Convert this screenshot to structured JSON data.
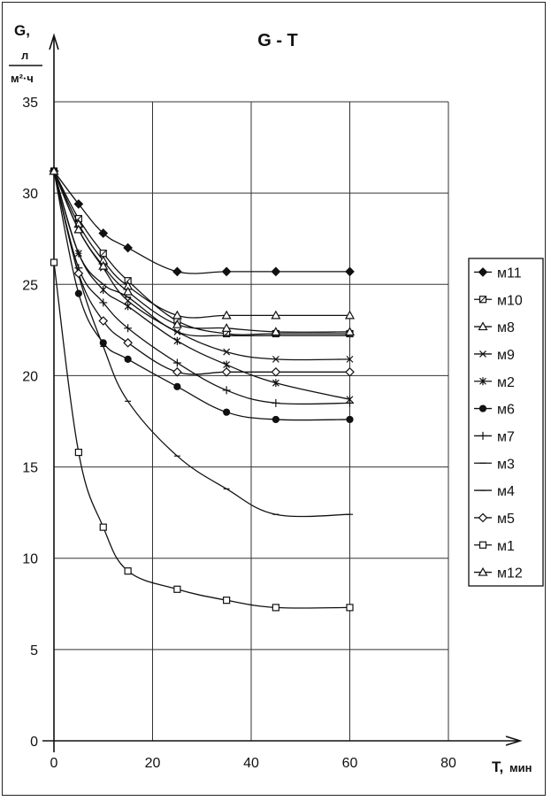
{
  "chart_data": {
    "type": "line",
    "title": "G - T",
    "ylabel": {
      "name": "G,",
      "unit_numerator": "л",
      "unit_denominator": "м²·ч"
    },
    "xlabel": {
      "name": "T,",
      "unit": "мин"
    },
    "xlim": [
      0,
      80
    ],
    "ylim": [
      0,
      35
    ],
    "xticks": [
      0,
      20,
      40,
      60,
      80
    ],
    "yticks": [
      0,
      5,
      10,
      15,
      20,
      25,
      30,
      35
    ],
    "grid": true,
    "legend_position": "right",
    "series": [
      {
        "name": "м11",
        "marker": "diamond-filled",
        "x": [
          0,
          5,
          10,
          15,
          25,
          35,
          45,
          60
        ],
        "y": [
          31.2,
          29.4,
          27.8,
          27.0,
          25.7,
          25.7,
          25.7,
          25.7
        ]
      },
      {
        "name": "м10",
        "marker": "square-hatched",
        "x": [
          0,
          5,
          10,
          15,
          25,
          35,
          45,
          60
        ],
        "y": [
          31.2,
          28.6,
          26.7,
          25.2,
          23.0,
          22.3,
          22.3,
          22.3
        ]
      },
      {
        "name": "м8",
        "marker": "triangle-open",
        "x": [
          0,
          5,
          10,
          15,
          25,
          35,
          45,
          60
        ],
        "y": [
          31.2,
          28.3,
          26.3,
          24.9,
          23.3,
          23.3,
          23.3,
          23.3
        ]
      },
      {
        "name": "м9",
        "marker": "x",
        "x": [
          0,
          5,
          10,
          15,
          25,
          35,
          45,
          60
        ],
        "y": [
          31.2,
          28.0,
          25.9,
          24.1,
          22.4,
          21.3,
          20.9,
          20.9
        ]
      },
      {
        "name": "м2",
        "marker": "asterisk",
        "x": [
          0,
          5,
          10,
          15,
          25,
          35,
          45,
          60
        ],
        "y": [
          31.2,
          26.7,
          24.7,
          23.8,
          21.9,
          20.6,
          19.6,
          18.7
        ]
      },
      {
        "name": "м6",
        "marker": "circle-filled",
        "x": [
          0,
          5,
          10,
          15,
          25,
          35,
          45,
          60
        ],
        "y": [
          31.2,
          24.5,
          21.8,
          20.9,
          19.4,
          18.0,
          17.6,
          17.6
        ]
      },
      {
        "name": "м7",
        "marker": "plus",
        "x": [
          0,
          5,
          10,
          15,
          25,
          35,
          45,
          60
        ],
        "y": [
          31.2,
          25.9,
          24.0,
          22.6,
          20.7,
          19.2,
          18.5,
          18.5
        ]
      },
      {
        "name": "м3",
        "marker": "dash",
        "x": [
          0,
          5,
          10,
          15,
          25,
          35,
          45,
          60
        ],
        "y": [
          31.2,
          26.7,
          25.0,
          24.3,
          22.4,
          22.2,
          22.2,
          22.2
        ]
      },
      {
        "name": "м4",
        "marker": "dash",
        "x": [
          0,
          5,
          10,
          15,
          25,
          35,
          45,
          60
        ],
        "y": [
          31.2,
          25.5,
          21.6,
          18.6,
          15.6,
          13.8,
          12.4,
          12.4
        ]
      },
      {
        "name": "м5",
        "marker": "diamond-open",
        "x": [
          0,
          5,
          10,
          15,
          25,
          35,
          45,
          60
        ],
        "y": [
          31.2,
          25.6,
          23.0,
          21.8,
          20.2,
          20.2,
          20.2,
          20.2
        ]
      },
      {
        "name": "м1",
        "marker": "square-open",
        "x": [
          0,
          5,
          10,
          15,
          25,
          35,
          45,
          60
        ],
        "y": [
          26.2,
          15.8,
          11.7,
          9.3,
          8.3,
          7.7,
          7.3,
          7.3
        ]
      },
      {
        "name": "м12",
        "marker": "triangle-open",
        "x": [
          0,
          5,
          10,
          15,
          25,
          35,
          45,
          60
        ],
        "y": [
          31.2,
          28.0,
          26.0,
          24.6,
          22.8,
          22.6,
          22.4,
          22.4
        ]
      }
    ]
  }
}
